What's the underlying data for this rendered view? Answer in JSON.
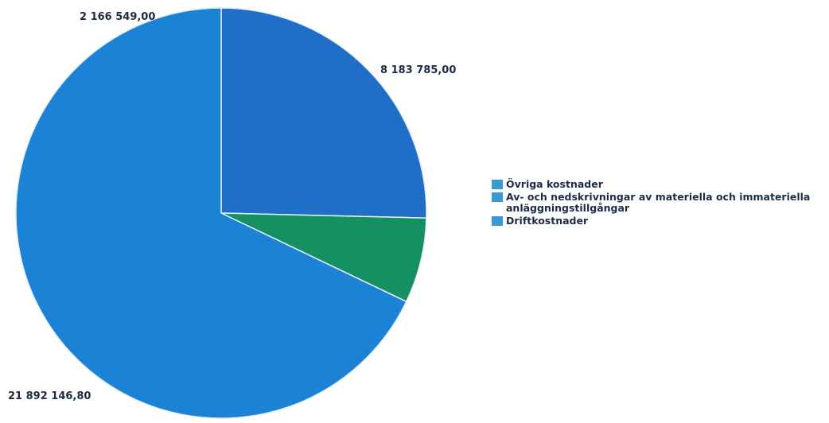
{
  "chart_data": {
    "type": "pie",
    "title": "",
    "slices": [
      {
        "label": "Övriga kostnader",
        "value": 8183785.0,
        "value_label": "8 183 785,00",
        "color": "#1f6fc9"
      },
      {
        "label": "Av- och nedskrivningar av materiella och immateriella anläggningstillgångar",
        "value": 2166549.0,
        "value_label": "2 166 549,00",
        "color": "#149063"
      },
      {
        "label": "Driftkostnader",
        "value": 21892146.8,
        "value_label": "21 892 146,80",
        "color": "#1c82d6"
      }
    ],
    "legend": {
      "position": "right",
      "entries": [
        {
          "lines": [
            "Övriga kostnader"
          ],
          "swatch_color": "#3a9ad0"
        },
        {
          "lines": [
            "Av- och nedskrivningar av materiella och immateriella",
            "anläggningstillgångar"
          ],
          "swatch_color": "#3a9ad0"
        },
        {
          "lines": [
            "Driftkostnader"
          ],
          "swatch_color": "#3a9ad0"
        }
      ]
    }
  }
}
